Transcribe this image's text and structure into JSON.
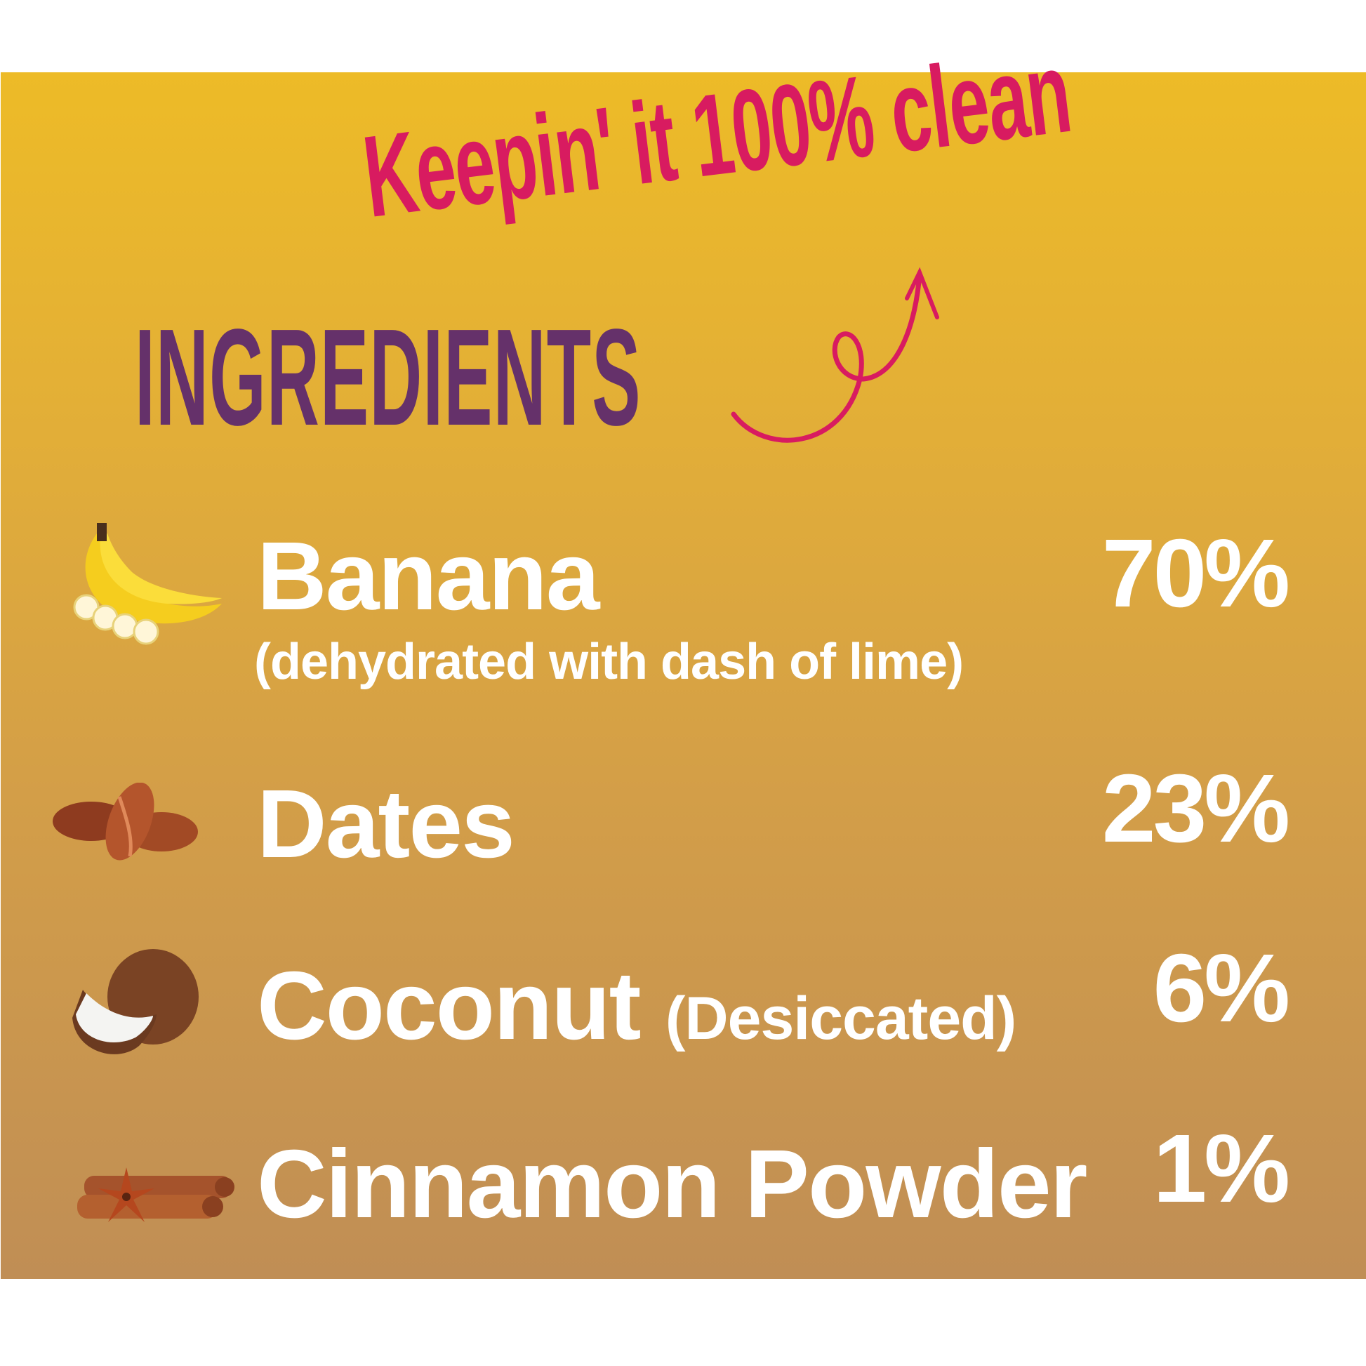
{
  "tagline": "Keepin' it 100% clean",
  "heading": "INGREDIENTS",
  "colors": {
    "tagline": "#D81B60",
    "heading": "#65316A",
    "background_top": "#EDBB27",
    "background_bottom": "#C08E55",
    "text": "#FFFFFF"
  },
  "ingredients": [
    {
      "name": "Banana",
      "note": "(dehydrated with dash of lime)",
      "percent": "70%",
      "icon": "banana-icon"
    },
    {
      "name": "Dates",
      "percent": "23%",
      "icon": "dates-icon"
    },
    {
      "name": "Coconut",
      "note": "(Desiccated)",
      "percent": "6%",
      "icon": "coconut-icon"
    },
    {
      "name": "Cinnamon Powder",
      "percent": "1%",
      "icon": "cinnamon-icon"
    }
  ]
}
